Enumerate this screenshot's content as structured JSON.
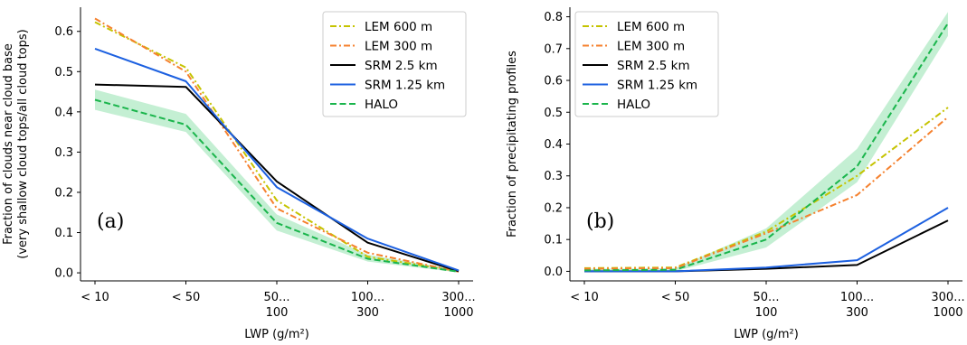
{
  "chart_data": [
    {
      "type": "line",
      "panel_label": "(a)",
      "ylabel_lines": [
        "Fraction of clouds near cloud base",
        "(very shallow cloud tops/all cloud tops)"
      ],
      "xlabel": "LWP (g/m²)",
      "categories": [
        {
          "lines": [
            "< 10"
          ]
        },
        {
          "lines": [
            "< 50"
          ]
        },
        {
          "lines": [
            "50...",
            "100"
          ]
        },
        {
          "lines": [
            "100...",
            "300"
          ]
        },
        {
          "lines": [
            "300...",
            "1000"
          ]
        }
      ],
      "ylim": [
        -0.02,
        0.66
      ],
      "yticks": [
        0.0,
        0.1,
        0.2,
        0.3,
        0.4,
        0.5,
        0.6
      ],
      "ytick_labels": [
        "0.0",
        "0.1",
        "0.2",
        "0.3",
        "0.4",
        "0.5",
        "0.6"
      ],
      "legend_position": "top-right",
      "grid": false,
      "series": [
        {
          "name": "LEM 600 m",
          "color": "#c5c300",
          "dash": "dashdot",
          "values": [
            0.623,
            0.51,
            0.18,
            0.04,
            0.004
          ]
        },
        {
          "name": "LEM 300 m",
          "color": "#f5812e",
          "dash": "dashdot",
          "values": [
            0.632,
            0.5,
            0.16,
            0.05,
            0.003
          ]
        },
        {
          "name": "SRM 2.5 km",
          "color": "#000000",
          "dash": "solid",
          "values": [
            0.468,
            0.462,
            0.227,
            0.075,
            0.004
          ]
        },
        {
          "name": "SRM 1.25 km",
          "color": "#1c60e0",
          "dash": "solid",
          "values": [
            0.557,
            0.476,
            0.213,
            0.085,
            0.006
          ]
        },
        {
          "name": "HALO",
          "color": "#1ab54c",
          "dash": "dashed",
          "values": [
            0.43,
            0.368,
            0.124,
            0.035,
            0.003
          ],
          "band_lower": [
            0.405,
            0.35,
            0.105,
            0.028,
            0.001
          ],
          "band_upper": [
            0.455,
            0.395,
            0.145,
            0.045,
            0.007
          ],
          "band_color": "#b5ebc8"
        }
      ]
    },
    {
      "type": "line",
      "panel_label": "(b)",
      "ylabel_lines": [
        "Fraction of precipitating profiles"
      ],
      "xlabel": "LWP (g/m²)",
      "categories": [
        {
          "lines": [
            "< 10"
          ]
        },
        {
          "lines": [
            "< 50"
          ]
        },
        {
          "lines": [
            "50...",
            "100"
          ]
        },
        {
          "lines": [
            "100...",
            "300"
          ]
        },
        {
          "lines": [
            "300...",
            "1000"
          ]
        }
      ],
      "ylim": [
        -0.03,
        0.83
      ],
      "yticks": [
        0.0,
        0.1,
        0.2,
        0.3,
        0.4,
        0.5,
        0.6,
        0.7,
        0.8
      ],
      "ytick_labels": [
        "0.0",
        "0.1",
        "0.2",
        "0.3",
        "0.4",
        "0.5",
        "0.6",
        "0.7",
        "0.8"
      ],
      "legend_position": "top-left",
      "grid": false,
      "series": [
        {
          "name": "LEM 600 m",
          "color": "#c5c300",
          "dash": "dashdot",
          "values": [
            0.01,
            0.012,
            0.125,
            0.3,
            0.515
          ]
        },
        {
          "name": "LEM 300 m",
          "color": "#f5812e",
          "dash": "dashdot",
          "values": [
            0.008,
            0.01,
            0.12,
            0.24,
            0.485
          ]
        },
        {
          "name": "SRM 2.5 km",
          "color": "#000000",
          "dash": "solid",
          "values": [
            0.0,
            0.0,
            0.008,
            0.02,
            0.16
          ]
        },
        {
          "name": "SRM 1.25 km",
          "color": "#1c60e0",
          "dash": "solid",
          "values": [
            0.0,
            0.0,
            0.012,
            0.035,
            0.2
          ]
        },
        {
          "name": "HALO",
          "color": "#1ab54c",
          "dash": "dashed",
          "values": [
            0.003,
            0.005,
            0.1,
            0.33,
            0.78
          ],
          "band_lower": [
            0.0,
            0.0,
            0.075,
            0.28,
            0.74
          ],
          "band_upper": [
            0.008,
            0.01,
            0.135,
            0.385,
            0.815
          ],
          "band_color": "#b5ebc8"
        }
      ]
    }
  ]
}
